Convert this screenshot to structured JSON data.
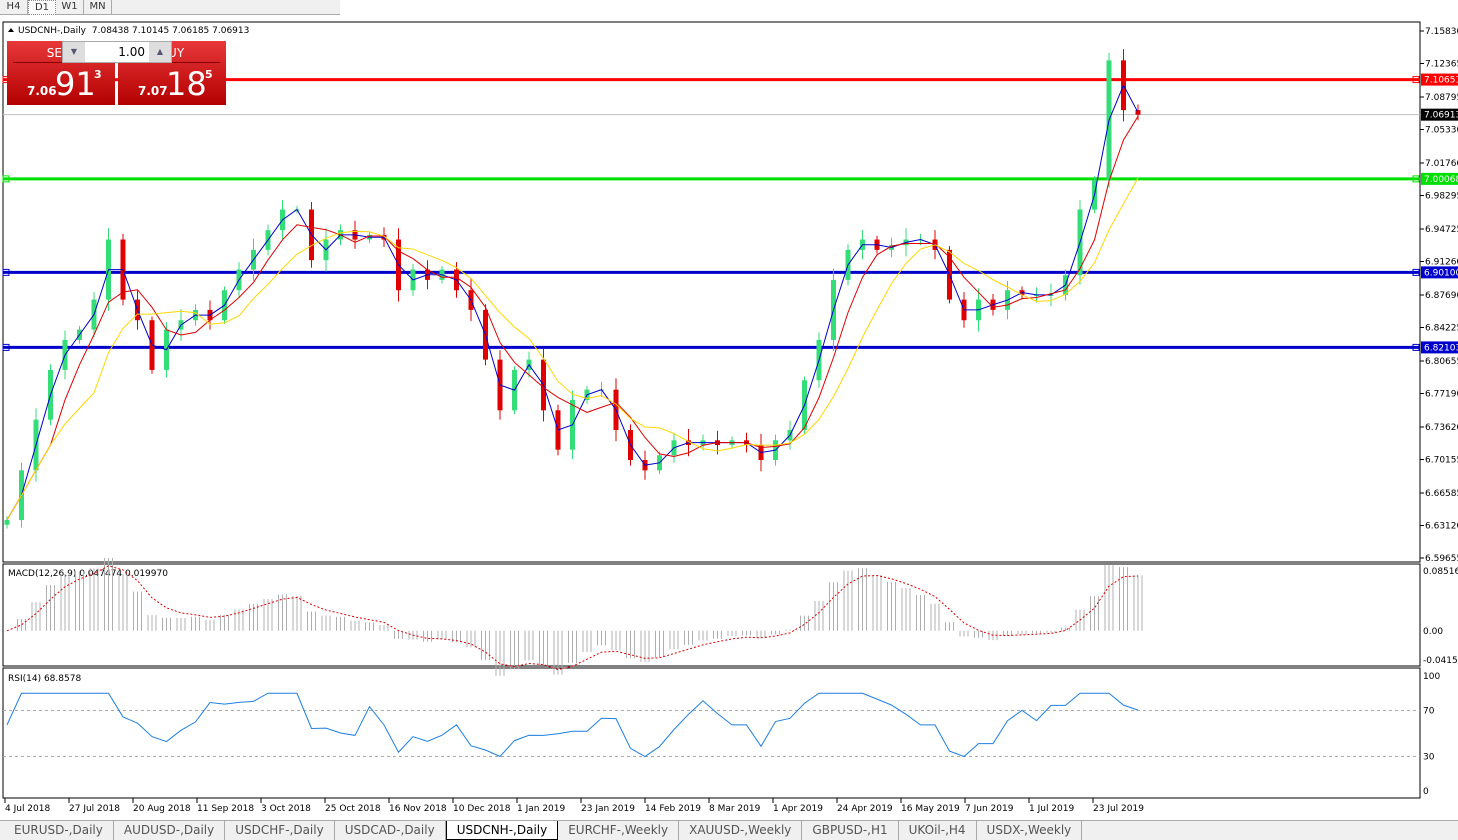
{
  "timeframes": [
    "H4",
    "D1",
    "W1",
    "MN"
  ],
  "active_timeframe": "D1",
  "header": {
    "symbol": "USDCNH-,Daily",
    "ohlc": "7.08438 7.10145 7.06185 7.06913"
  },
  "trade_panel": {
    "sell_label": "SELL",
    "buy_label": "BUY",
    "lot": "1.00",
    "sell_small": "7.06",
    "sell_big": "91",
    "sell_sup": "3",
    "buy_small": "7.07",
    "buy_big": "18",
    "buy_sup": "5"
  },
  "price_axis": [
    "7.15830",
    "7.12365",
    "7.08795",
    "7.05330",
    "7.01760",
    "6.98295",
    "6.94725",
    "6.91260",
    "6.87690",
    "6.84225",
    "6.80655",
    "6.77190",
    "6.73620",
    "6.70155",
    "6.66585",
    "6.63120",
    "6.59655"
  ],
  "levels": [
    {
      "value": "7.10651",
      "color": "#ff0000"
    },
    {
      "value": "7.00068",
      "color": "#00e000"
    },
    {
      "value": "6.90100",
      "color": "#0000cc"
    },
    {
      "value": "6.82103",
      "color": "#0000cc"
    }
  ],
  "current_price": {
    "value": "7.06913",
    "color": "#000000"
  },
  "macd": {
    "label": "MACD(12,26,9) 0.047474 0.019970",
    "axis": [
      "0.085164",
      "0.00",
      "-0.04159"
    ]
  },
  "rsi": {
    "label": "RSI(14) 68.8578",
    "axis": [
      "100",
      "70",
      "30",
      "0"
    ]
  },
  "date_axis": [
    "4 Jul 2018",
    "27 Jul 2018",
    "20 Aug 2018",
    "11 Sep 2018",
    "3 Oct 2018",
    "25 Oct 2018",
    "16 Nov 2018",
    "10 Dec 2018",
    "1 Jan 2019",
    "23 Jan 2019",
    "14 Feb 2019",
    "8 Mar 2019",
    "1 Apr 2019",
    "24 Apr 2019",
    "16 May 2019",
    "7 Jun 2019",
    "1 Jul 2019",
    "23 Jul 2019"
  ],
  "chart_data": {
    "type": "candlestick",
    "closes": [
      6.637,
      6.69,
      6.744,
      6.797,
      6.829,
      6.84,
      6.872,
      6.936,
      6.872,
      6.85,
      6.797,
      6.84,
      6.85,
      6.861,
      6.85,
      6.882,
      6.904,
      6.925,
      6.946,
      6.968,
      6.968,
      6.914,
      6.936,
      6.946,
      6.936,
      6.941,
      6.936,
      6.882,
      6.904,
      6.893,
      6.904,
      6.882,
      6.861,
      6.808,
      6.754,
      6.797,
      6.808,
      6.754,
      6.712,
      6.765,
      6.776,
      6.776,
      6.733,
      6.701,
      6.69,
      6.706,
      6.722,
      6.717,
      6.722,
      6.717,
      6.722,
      6.717,
      6.701,
      6.722,
      6.733,
      6.786,
      6.829,
      6.893,
      6.925,
      6.936,
      6.925,
      6.93,
      6.936,
      6.936,
      6.925,
      6.872,
      6.85,
      6.872,
      6.861,
      6.882,
      6.877,
      6.877,
      6.877,
      6.898,
      6.968,
      6.9995,
      7.127,
      7.074,
      7.069
    ],
    "ylim": [
      6.59655,
      7.1583
    ],
    "up_color": "#33dd77",
    "down_color": "#e00000",
    "ma_colors": [
      "#0000cc",
      "#dd0000",
      "#ffd700"
    ]
  },
  "tabs": [
    "EURUSD-,Daily",
    "AUDUSD-,Daily",
    "USDCHF-,Daily",
    "USDCAD-,Daily",
    "USDCNH-,Daily",
    "EURCHF-,Weekly",
    "XAUUSD-,Weekly",
    "GBPUSD-,H1",
    "UKOil-,H4",
    "USDX-,Weekly"
  ],
  "active_tab": "USDCNH-,Daily"
}
